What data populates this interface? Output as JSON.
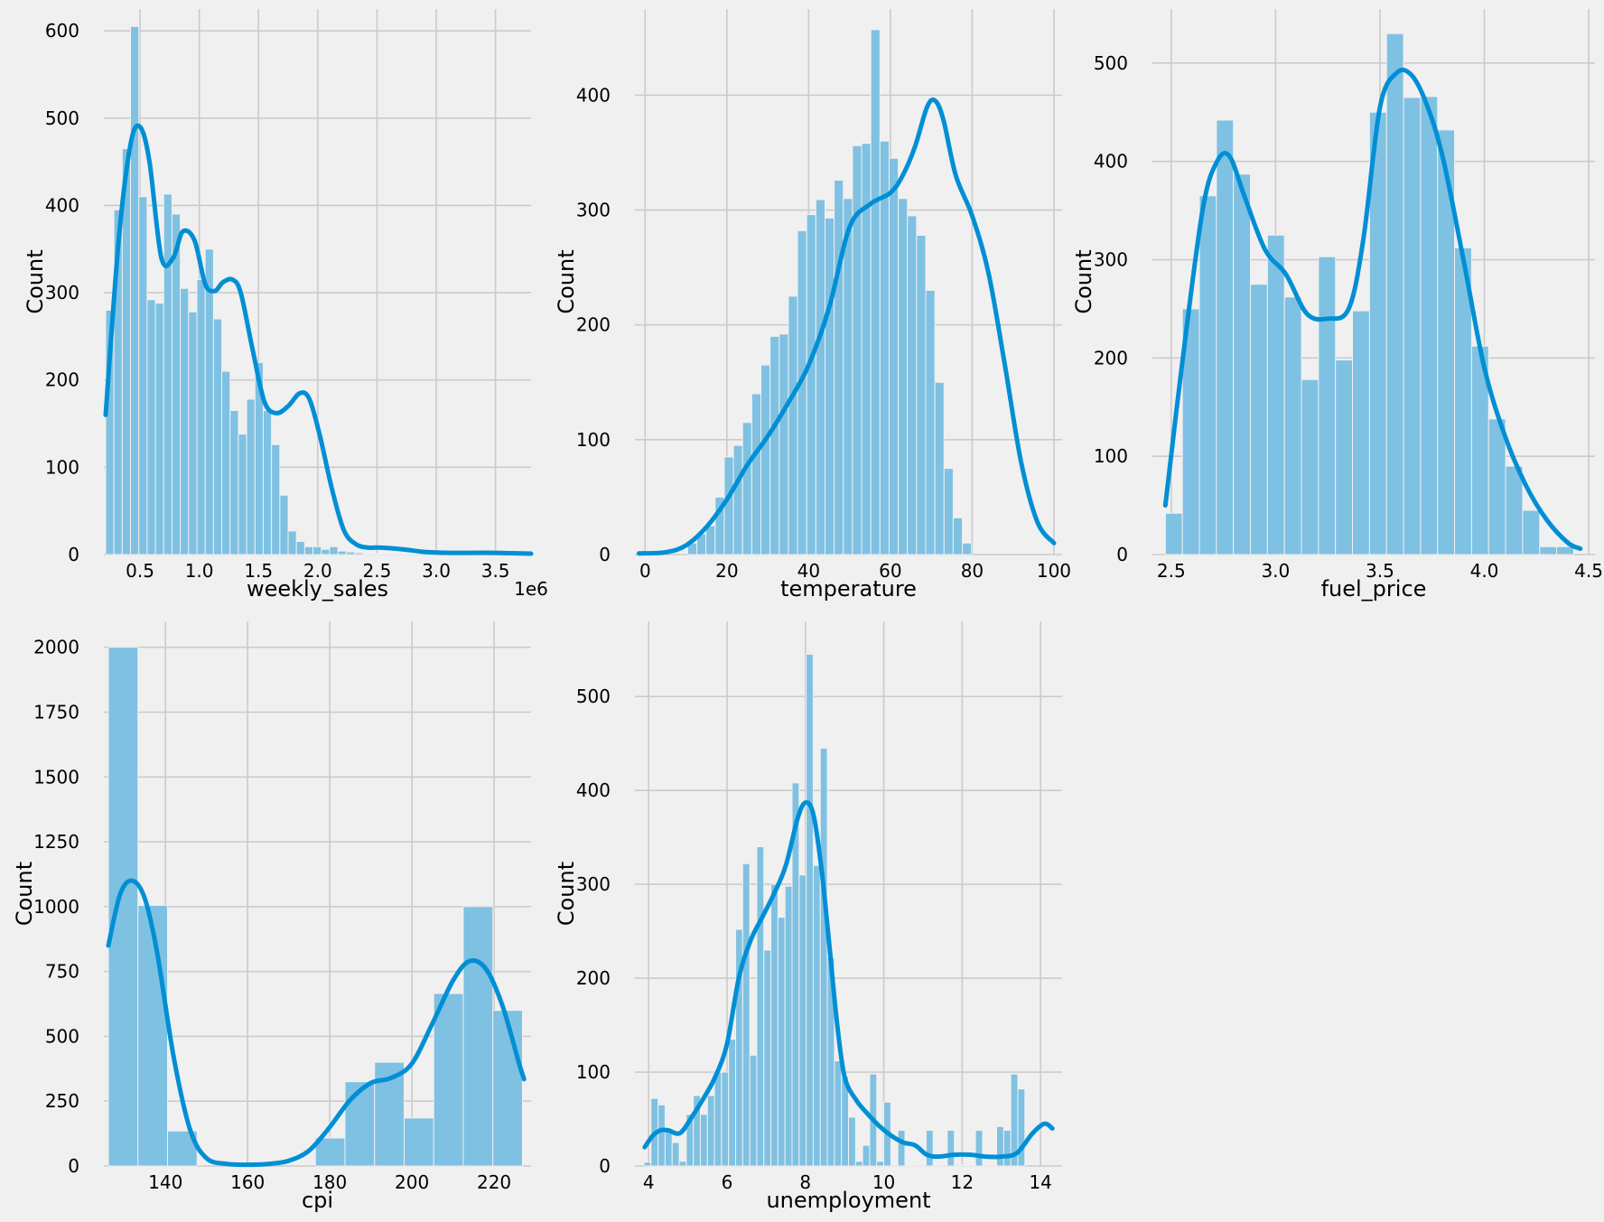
{
  "colors": {
    "background": "#f0f0f0",
    "bar_fill": "#7fc1e2",
    "kde_line": "#008fd5",
    "grid": "#cbcbcb"
  },
  "chart_data": [
    {
      "type": "bar",
      "xlabel": "weekly_sales",
      "ylabel": "Count",
      "x_offset_label": "1e6",
      "xlim": [
        0.195,
        3.8
      ],
      "ylim": [
        0,
        625
      ],
      "xticks": [
        0.5,
        1.0,
        1.5,
        2.0,
        2.5,
        3.0,
        3.5
      ],
      "xtick_labels": [
        "0.5",
        "1.0",
        "1.5",
        "2.0",
        "2.5",
        "3.0",
        "3.5"
      ],
      "yticks": [
        0,
        100,
        200,
        300,
        400,
        500,
        600
      ],
      "ytick_labels": [
        "0",
        "100",
        "200",
        "300",
        "400",
        "500",
        "600"
      ],
      "bin_start": 0.21,
      "bin_width": 0.07,
      "counts": [
        280,
        395,
        465,
        605,
        410,
        292,
        288,
        413,
        390,
        305,
        278,
        315,
        350,
        270,
        210,
        165,
        138,
        178,
        220,
        165,
        126,
        68,
        27,
        15,
        9,
        9,
        6,
        9,
        4,
        3,
        2,
        1,
        1,
        1,
        1,
        1,
        1,
        1,
        1,
        1,
        1,
        1,
        1,
        1,
        1,
        1,
        1,
        1,
        1,
        1,
        1
      ],
      "kde": {
        "x": [
          0.21,
          0.32,
          0.42,
          0.5,
          0.58,
          0.68,
          0.78,
          0.86,
          0.96,
          1.05,
          1.13,
          1.2,
          1.28,
          1.35,
          1.45,
          1.55,
          1.65,
          1.75,
          1.85,
          1.93,
          2.02,
          2.12,
          2.22,
          2.32,
          2.42,
          2.52,
          2.72,
          2.9,
          3.1,
          3.3,
          3.5,
          3.8
        ],
        "y": [
          160,
          360,
          470,
          490,
          450,
          340,
          340,
          370,
          360,
          310,
          302,
          312,
          315,
          300,
          235,
          175,
          162,
          170,
          185,
          178,
          135,
          75,
          28,
          12,
          8,
          8,
          6,
          3,
          2,
          2,
          2,
          1
        ]
      }
    },
    {
      "type": "bar",
      "xlabel": "temperature",
      "ylabel": "Count",
      "xlim": [
        -2.5,
        102
      ],
      "ylim": [
        0,
        475
      ],
      "xticks": [
        0,
        20,
        40,
        60,
        80,
        100
      ],
      "xtick_labels": [
        "0",
        "20",
        "40",
        "60",
        "80",
        "100"
      ],
      "yticks": [
        0,
        100,
        200,
        300,
        400
      ],
      "yticks_labels_note": "",
      "ytick_labels": [
        "0",
        "100",
        "200",
        "300",
        "400"
      ],
      "bin_start": 10.4,
      "bin_width": 2.24,
      "counts": [
        10,
        18,
        25,
        50,
        85,
        95,
        115,
        140,
        165,
        190,
        192,
        225,
        282,
        296,
        309,
        293,
        326,
        310,
        356,
        358,
        457,
        360,
        345,
        310,
        295,
        278,
        230,
        150,
        75,
        32,
        10
      ],
      "kde": {
        "x": [
          -1.5,
          5,
          10,
          15,
          20,
          25,
          30,
          35,
          40,
          45,
          50,
          55,
          60,
          63,
          66,
          69,
          71,
          73,
          76,
          80,
          84,
          88,
          92,
          96,
          100
        ],
        "y": [
          1,
          2,
          8,
          24,
          48,
          78,
          103,
          132,
          165,
          215,
          285,
          305,
          315,
          330,
          355,
          390,
          395,
          378,
          330,
          295,
          245,
          165,
          80,
          28,
          10
        ]
      }
    },
    {
      "type": "bar",
      "xlabel": "fuel_price",
      "ylabel": "Count",
      "xlim": [
        2.41,
        4.53
      ],
      "ylim": [
        0,
        555
      ],
      "xticks": [
        2.5,
        3.0,
        3.5,
        4.0,
        4.5
      ],
      "xtick_labels": [
        "2.5",
        "3.0",
        "3.5",
        "4.0",
        "4.5"
      ],
      "yticks": [
        0,
        100,
        200,
        300,
        400,
        500
      ],
      "ytick_labels": [
        "0",
        "100",
        "200",
        "300",
        "400",
        "500"
      ],
      "bin_start": 2.472,
      "bin_width": 0.0815,
      "counts": [
        42,
        250,
        365,
        442,
        387,
        275,
        325,
        262,
        178,
        303,
        198,
        248,
        450,
        530,
        465,
        466,
        432,
        312,
        212,
        138,
        90,
        45,
        8,
        8
      ],
      "kde": {
        "x": [
          2.472,
          2.55,
          2.65,
          2.72,
          2.78,
          2.85,
          2.95,
          3.05,
          3.15,
          3.25,
          3.35,
          3.42,
          3.5,
          3.58,
          3.65,
          3.72,
          3.8,
          3.9,
          4.0,
          4.1,
          4.2,
          4.3,
          4.4,
          4.46
        ],
        "y": [
          50,
          190,
          350,
          400,
          405,
          365,
          310,
          285,
          245,
          240,
          250,
          320,
          455,
          490,
          488,
          460,
          405,
          300,
          190,
          120,
          70,
          35,
          12,
          6
        ]
      }
    },
    {
      "type": "bar",
      "xlabel": "cpi",
      "ylabel": "Count",
      "xlim": [
        125,
        229
      ],
      "ylim": [
        0,
        2100
      ],
      "xticks": [
        140,
        160,
        180,
        200,
        220
      ],
      "xtick_labels": [
        "140",
        "160",
        "180",
        "200",
        "220"
      ],
      "yticks": [
        0,
        250,
        500,
        750,
        1000,
        1250,
        1500,
        1750,
        2000
      ],
      "ytick_labels": [
        "0",
        "250",
        "500",
        "750",
        "1000",
        "1250",
        "1500",
        "1750",
        "2000"
      ],
      "bin_start": 126.1,
      "bin_width": 7.2,
      "bins": [
        {
          "start": 126.1,
          "count": 2000
        },
        {
          "start": 133.3,
          "count": 1005
        },
        {
          "start": 140.5,
          "count": 135
        },
        {
          "start": 176.5,
          "count": 108
        },
        {
          "start": 183.7,
          "count": 325
        },
        {
          "start": 190.9,
          "count": 400
        },
        {
          "start": 198.1,
          "count": 185
        },
        {
          "start": 205.3,
          "count": 665
        },
        {
          "start": 212.5,
          "count": 1000
        },
        {
          "start": 219.7,
          "count": 600
        }
      ],
      "kde": {
        "x": [
          126.1,
          129,
          132,
          135,
          138,
          142,
          146,
          150,
          155,
          160,
          165,
          170,
          175,
          180,
          185,
          190,
          195,
          200,
          205,
          210,
          214,
          218,
          222,
          226,
          227.3
        ],
        "y": [
          850,
          1050,
          1100,
          1030,
          820,
          420,
          140,
          30,
          8,
          5,
          8,
          20,
          60,
          150,
          255,
          320,
          340,
          395,
          550,
          715,
          790,
          760,
          620,
          400,
          335
        ]
      }
    },
    {
      "type": "bar",
      "xlabel": "unemployment",
      "ylabel": "Count",
      "xlim": [
        3.65,
        14.55
      ],
      "ylim": [
        0,
        580
      ],
      "xticks": [
        4,
        6,
        8,
        10,
        12,
        14
      ],
      "xtick_labels": [
        "4",
        "6",
        "8",
        "10",
        "12",
        "14"
      ],
      "yticks": [
        0,
        100,
        200,
        300,
        400,
        500
      ],
      "ytick_labels": [
        "0",
        "100",
        "200",
        "300",
        "400",
        "500"
      ],
      "bin_start": 3.88,
      "bin_width": 0.18,
      "counts": [
        4,
        72,
        65,
        40,
        25,
        5,
        55,
        75,
        55,
        75,
        100,
        100,
        135,
        252,
        322,
        118,
        340,
        230,
        300,
        265,
        298,
        408,
        310,
        545,
        320,
        445,
        222,
        112,
        95,
        52,
        5,
        22,
        98,
        5,
        68,
        1,
        38,
        1,
        1,
        1,
        38,
        1,
        1,
        38,
        1,
        1,
        1,
        38,
        1,
        1,
        42,
        38,
        98,
        82
      ],
      "kde": {
        "x": [
          3.9,
          4.1,
          4.3,
          4.5,
          4.8,
          5.1,
          5.4,
          5.7,
          6.0,
          6.3,
          6.6,
          6.9,
          7.2,
          7.5,
          7.8,
          8.0,
          8.2,
          8.4,
          8.6,
          8.8,
          9.0,
          9.3,
          9.6,
          9.9,
          10.2,
          10.5,
          10.8,
          11.1,
          11.4,
          11.8,
          12.2,
          12.6,
          13.0,
          13.4,
          13.8,
          14.1,
          14.3
        ],
        "y": [
          20,
          32,
          38,
          38,
          35,
          52,
          72,
          95,
          130,
          200,
          240,
          265,
          290,
          320,
          370,
          387,
          375,
          320,
          240,
          155,
          95,
          70,
          55,
          42,
          32,
          25,
          22,
          12,
          10,
          12,
          12,
          10,
          10,
          14,
          35,
          45,
          40
        ]
      }
    }
  ]
}
